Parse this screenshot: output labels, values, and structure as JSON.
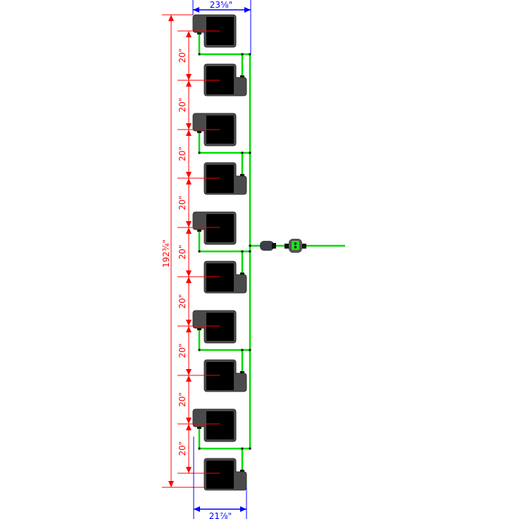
{
  "dimensions": {
    "top_width": "23⅝\"",
    "bottom_width": "21⅞\"",
    "total_height": "192¾\"",
    "spacing": [
      "20\"",
      "20\"",
      "20\"",
      "20\"",
      "20\"",
      "20\"",
      "20\"",
      "20\"",
      "20\""
    ]
  },
  "colors": {
    "dimension_red": "#ff0000",
    "dimension_blue": "#0000ff",
    "tubing_green": "#00dd00",
    "unit_body": "#4a4a4a",
    "unit_reservoir": "#000000"
  },
  "icons": {
    "units": "pot-unit-icon",
    "filter": "inline-filter-icon",
    "valve": "tap-connector-icon"
  }
}
